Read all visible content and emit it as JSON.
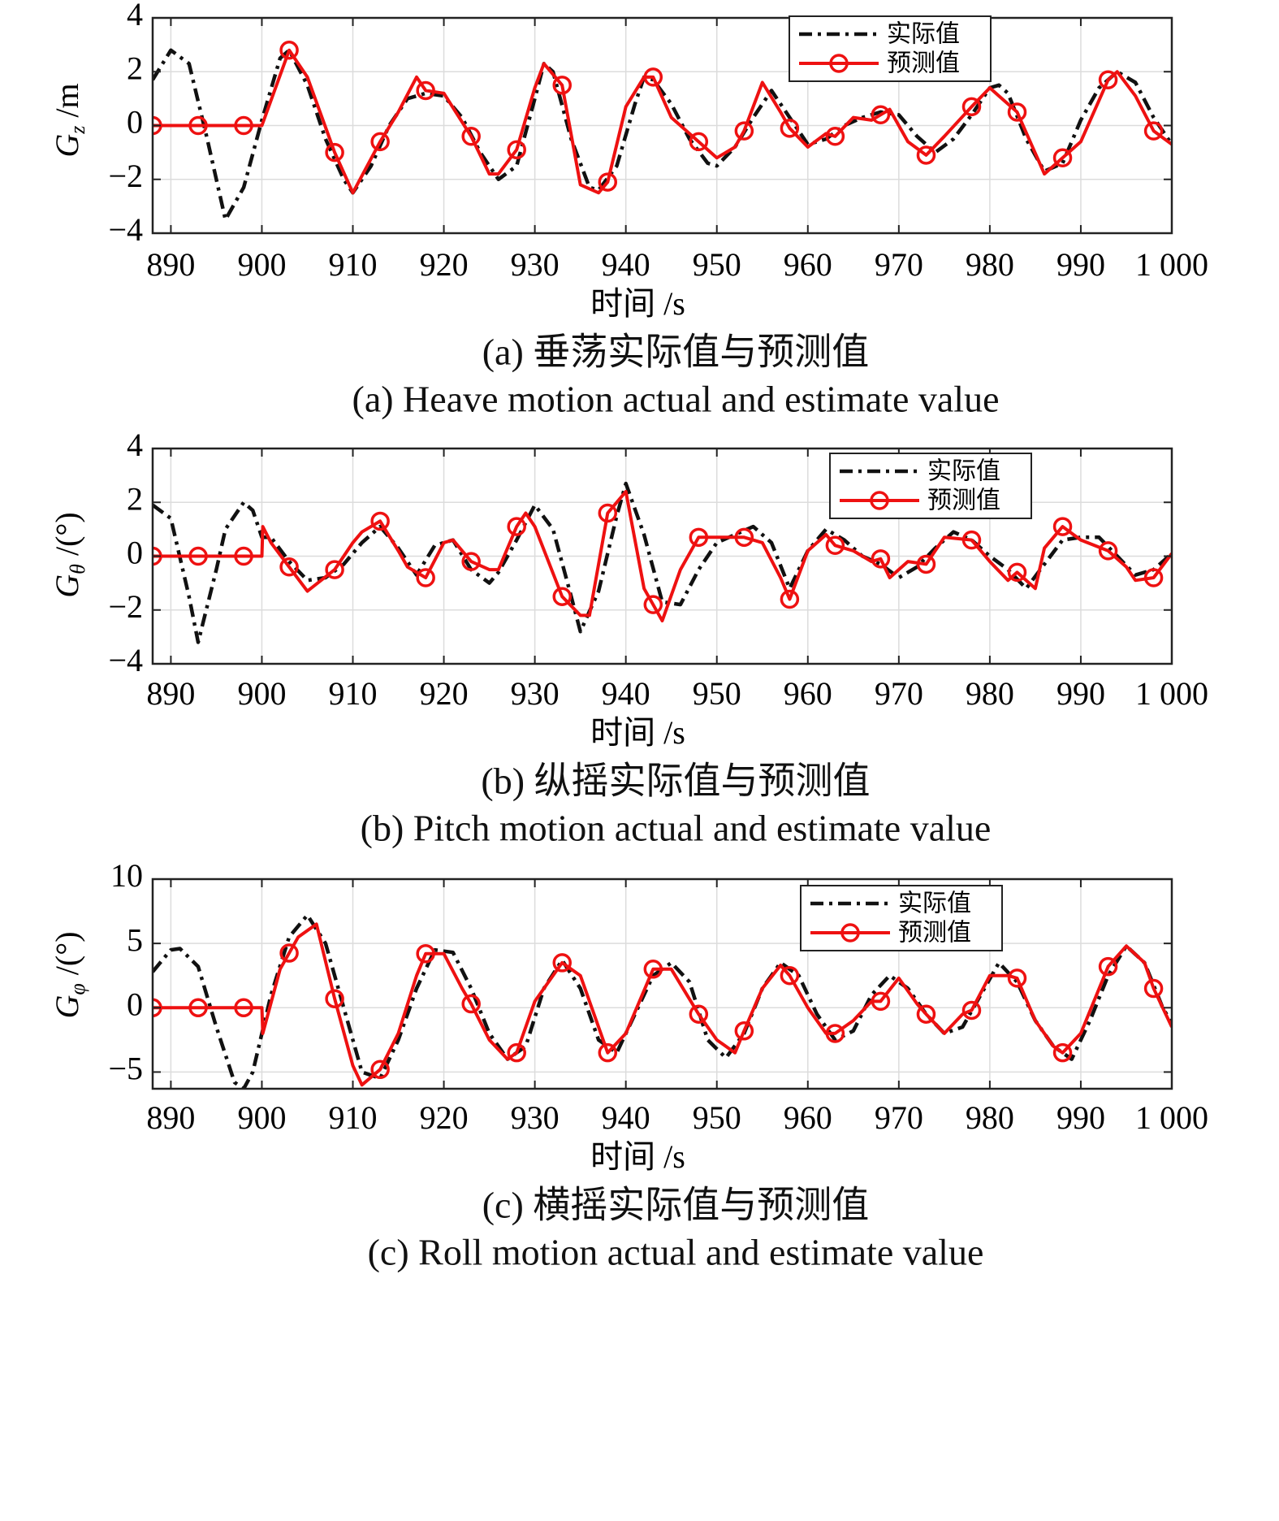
{
  "chart_data": [
    {
      "type": "line",
      "ylabel": "G_z /m",
      "xlabel": "时间 /s",
      "caption_cn": "(a) 垂荡实际值与预测值",
      "caption_en": "(a) Heave motion actual and estimate value",
      "xlim": [
        888,
        1000
      ],
      "ylim": [
        -4,
        4
      ],
      "xticks": [
        890,
        900,
        910,
        920,
        930,
        940,
        950,
        960,
        970,
        980,
        990,
        1000
      ],
      "xtick_labels": [
        "890",
        "900",
        "910",
        "920",
        "930",
        "940",
        "950",
        "960",
        "970",
        "980",
        "990",
        "1 000"
      ],
      "yticks": [
        -4,
        -2,
        0,
        2,
        4
      ],
      "ytick_labels": [
        "−4",
        "−2",
        "0",
        "2",
        "4"
      ],
      "legend": [
        "实际值",
        "预测值"
      ],
      "legend_position": "top-right",
      "grid": true,
      "series": [
        {
          "name": "实际值",
          "style": "black dash-dot",
          "x": [
            888,
            890,
            892,
            894,
            896,
            898,
            900,
            902,
            903,
            905,
            907,
            909,
            910,
            912,
            914,
            916,
            918,
            920,
            922,
            924,
            926,
            928,
            930,
            931,
            932,
            934,
            936,
            937,
            939,
            941,
            942,
            943,
            945,
            947,
            949,
            950,
            952,
            954,
            956,
            958,
            960,
            962,
            964,
            966,
            968,
            970,
            972,
            974,
            976,
            978,
            980,
            981,
            982,
            984,
            986,
            988,
            990,
            992,
            994,
            996,
            998,
            1000
          ],
          "y": [
            1.7,
            2.8,
            2.3,
            -0.5,
            -3.5,
            -2.3,
            0.2,
            2.5,
            2.8,
            1.5,
            -0.5,
            -2.0,
            -2.5,
            -1.5,
            0,
            1.0,
            1.2,
            1.1,
            0.3,
            -1.0,
            -2.0,
            -1.5,
            1.0,
            2.3,
            2.0,
            -0.5,
            -2.3,
            -2.4,
            -1.5,
            0.8,
            1.8,
            1.7,
            0.8,
            -0.5,
            -1.4,
            -1.5,
            -0.8,
            0.3,
            1.3,
            0.3,
            -0.7,
            -0.5,
            0,
            0.3,
            0.5,
            0.4,
            -0.4,
            -1.0,
            -0.5,
            0.4,
            1.4,
            1.5,
            1.2,
            -0.5,
            -1.7,
            -1.4,
            0.2,
            1.4,
            2.0,
            1.6,
            0.3,
            -0.7
          ]
        },
        {
          "name": "预测值",
          "style": "red solid with circle markers",
          "x": [
            888,
            893,
            898,
            900,
            903,
            905,
            908,
            910,
            913,
            915,
            917,
            918,
            920,
            923,
            925,
            926,
            928,
            930,
            931,
            933,
            935,
            937,
            938,
            940,
            942,
            943,
            945,
            948,
            950,
            952,
            953,
            955,
            957,
            958,
            960,
            962,
            963,
            965,
            967,
            968,
            969,
            971,
            973,
            975,
            978,
            980,
            981,
            983,
            986,
            988,
            990,
            993,
            994,
            996,
            998,
            1000
          ],
          "y": [
            0,
            0,
            0,
            0,
            2.8,
            1.8,
            -1.0,
            -2.5,
            -0.6,
            0.5,
            1.8,
            1.3,
            1.2,
            -0.4,
            -1.8,
            -1.8,
            -0.9,
            1.4,
            2.3,
            1.5,
            -2.2,
            -2.5,
            -2.1,
            0.7,
            1.8,
            1.8,
            0.3,
            -0.6,
            -1.2,
            -0.8,
            -0.2,
            1.6,
            0.5,
            -0.1,
            -0.8,
            -0.3,
            -0.4,
            0.3,
            0.2,
            0.4,
            0.6,
            -0.6,
            -1.1,
            -0.4,
            0.7,
            1.4,
            1.1,
            0.5,
            -1.8,
            -1.2,
            -0.6,
            1.7,
            2.0,
            1.1,
            -0.2,
            -0.7
          ]
        }
      ]
    },
    {
      "type": "line",
      "ylabel": "G_θ /(°)",
      "xlabel": "时间 /s",
      "caption_cn": "(b) 纵摇实际值与预测值",
      "caption_en": "(b) Pitch motion actual and estimate value",
      "xlim": [
        888,
        1000
      ],
      "ylim": [
        -4,
        4
      ],
      "xticks": [
        890,
        900,
        910,
        920,
        930,
        940,
        950,
        960,
        970,
        980,
        990,
        1000
      ],
      "xtick_labels": [
        "890",
        "900",
        "910",
        "920",
        "930",
        "940",
        "950",
        "960",
        "970",
        "980",
        "990",
        "1 000"
      ],
      "yticks": [
        -4,
        -2,
        0,
        2,
        4
      ],
      "ytick_labels": [
        "−4",
        "−2",
        "0",
        "2",
        "4"
      ],
      "legend": [
        "实际值",
        "预测值"
      ],
      "legend_position": "top-right",
      "grid": true,
      "series": [
        {
          "name": "实际值",
          "style": "black dash-dot",
          "x": [
            888,
            890,
            892,
            893,
            895,
            896,
            898,
            899,
            900,
            901,
            903,
            905,
            907,
            909,
            911,
            913,
            915,
            917,
            919,
            921,
            923,
            925,
            926,
            928,
            930,
            932,
            934,
            935,
            937,
            939,
            940,
            942,
            944,
            946,
            948,
            950,
            952,
            954,
            956,
            958,
            960,
            962,
            964,
            966,
            968,
            970,
            972,
            974,
            976,
            978,
            980,
            982,
            984,
            986,
            988,
            990,
            992,
            994,
            996,
            998,
            1000
          ],
          "y": [
            1.9,
            1.4,
            -1.5,
            -3.2,
            -0.5,
            1.0,
            2.0,
            1.7,
            0.7,
            0.7,
            -0.2,
            -0.9,
            -0.8,
            -0.3,
            0.5,
            1.1,
            0.3,
            -0.7,
            0.4,
            0.6,
            -0.5,
            -1.0,
            -0.6,
            0.6,
            1.9,
            1.0,
            -1.5,
            -2.8,
            -1.3,
            1.5,
            2.7,
            0.8,
            -1.7,
            -1.8,
            -0.5,
            0.5,
            0.8,
            1.1,
            0.5,
            -1.2,
            0.2,
            1.0,
            0.6,
            0,
            -0.3,
            -0.8,
            -0.4,
            0.3,
            0.9,
            0.6,
            0,
            -0.5,
            -1.2,
            -0.3,
            0.6,
            0.7,
            0.7,
            0,
            -0.7,
            -0.5,
            0.1
          ]
        },
        {
          "name": "预测值",
          "style": "red solid with circle markers",
          "x": [
            888,
            893,
            898,
            900,
            900.1,
            901,
            903,
            905,
            908,
            910,
            911,
            913,
            915,
            916,
            918,
            920,
            921,
            923,
            925,
            926,
            928,
            929,
            930,
            933,
            935,
            936,
            938,
            940,
            942,
            944,
            946,
            948,
            950,
            953,
            955,
            957,
            958,
            960,
            962,
            963,
            965,
            967,
            968,
            969,
            971,
            973,
            975,
            978,
            980,
            982,
            983,
            985,
            986,
            988,
            990,
            993,
            995,
            996,
            998,
            1000
          ],
          "y": [
            0,
            0,
            0,
            0,
            1.1,
            0.5,
            -0.4,
            -1.3,
            -0.5,
            0.5,
            0.9,
            1.3,
            0.2,
            -0.4,
            -0.8,
            0.5,
            0.6,
            -0.2,
            -0.5,
            -0.5,
            1.1,
            1.6,
            1.1,
            -1.5,
            -2.2,
            -2.2,
            1.6,
            2.4,
            -1.2,
            -2.4,
            -0.5,
            0.7,
            0.7,
            0.7,
            0.5,
            -0.8,
            -1.6,
            0.2,
            0.8,
            0.4,
            0.2,
            -0.2,
            -0.1,
            -0.8,
            -0.2,
            -0.3,
            0.7,
            0.6,
            -0.2,
            -0.9,
            -0.6,
            -1.2,
            0.3,
            1.1,
            0.6,
            0.2,
            -0.4,
            -0.9,
            -0.8,
            0.1
          ]
        }
      ]
    },
    {
      "type": "line",
      "ylabel": "G_φ /(°)",
      "xlabel": "时间 /s",
      "caption_cn": "(c) 横摇实际值与预测值",
      "caption_en": "(c) Roll motion actual and estimate value",
      "xlim": [
        888,
        1000
      ],
      "ylim": [
        -6.3,
        10
      ],
      "xticks": [
        890,
        900,
        910,
        920,
        930,
        940,
        950,
        960,
        970,
        980,
        990,
        1000
      ],
      "xtick_labels": [
        "890",
        "900",
        "910",
        "920",
        "930",
        "940",
        "950",
        "960",
        "970",
        "980",
        "990",
        "1 000"
      ],
      "yticks": [
        -5,
        0,
        5,
        10
      ],
      "ytick_labels": [
        "−5",
        "0",
        "5",
        "10"
      ],
      "legend": [
        "实际值",
        "预测值"
      ],
      "legend_position": "top-right",
      "grid": true,
      "series": [
        {
          "name": "实际值",
          "style": "black dash-dot",
          "x": [
            888,
            890,
            891,
            893,
            895,
            897,
            898,
            899,
            901,
            903,
            905,
            907,
            909,
            911,
            913,
            915,
            917,
            919,
            921,
            923,
            925,
            927,
            929,
            931,
            933,
            935,
            937,
            939,
            941,
            943,
            945,
            947,
            949,
            951,
            953,
            955,
            957,
            959,
            961,
            963,
            965,
            967,
            969,
            971,
            973,
            975,
            977,
            979,
            981,
            983,
            985,
            987,
            989,
            991,
            993,
            995,
            997,
            999,
            1000
          ],
          "y": [
            2.8,
            4.5,
            4.6,
            3.2,
            -1.5,
            -5.8,
            -6.3,
            -5.0,
            1.0,
            5.5,
            7.2,
            5.0,
            0,
            -5.0,
            -5.5,
            -2.5,
            1.5,
            4.5,
            4.3,
            1.5,
            -2.0,
            -4.0,
            -3.0,
            1.5,
            3.7,
            1.5,
            -2.5,
            -3.5,
            -0.5,
            2.5,
            3.5,
            2.0,
            -2.5,
            -3.9,
            -2.0,
            1.5,
            3.5,
            2.5,
            -0.5,
            -2.5,
            -1.8,
            1.0,
            2.5,
            1.5,
            -0.5,
            -2.0,
            -1.5,
            1.0,
            3.5,
            2.0,
            -1.0,
            -3.0,
            -4.0,
            -1.0,
            2.5,
            4.8,
            3.5,
            0,
            -1.2
          ]
        },
        {
          "name": "预测值",
          "style": "red solid with circle markers",
          "x": [
            888,
            893,
            898,
            900,
            900.1,
            902,
            904,
            906,
            908,
            910,
            911,
            913,
            915,
            917,
            918,
            920,
            922,
            923,
            925,
            927,
            928,
            930,
            933,
            935,
            937,
            938,
            940,
            943,
            945,
            948,
            950,
            952,
            953,
            955,
            957,
            958,
            960,
            962,
            963,
            965,
            967,
            968,
            970,
            972,
            973,
            975,
            977,
            978,
            980,
            982,
            983,
            985,
            987,
            988,
            990,
            993,
            995,
            997,
            998,
            1000
          ],
          "y": [
            0,
            0,
            0,
            0,
            -2.0,
            3.0,
            5.5,
            6.5,
            0.7,
            -4.5,
            -6.0,
            -4.8,
            -2.0,
            2.5,
            4.2,
            4.2,
            1.5,
            0.3,
            -2.5,
            -4.0,
            -3.5,
            0.5,
            3.5,
            2.5,
            -1.5,
            -3.5,
            -2.0,
            3.0,
            3.0,
            -0.5,
            -2.5,
            -3.5,
            -1.8,
            1.5,
            3.3,
            2.5,
            0,
            -2.0,
            -2.0,
            -1.0,
            0.5,
            0.5,
            2.3,
            0.3,
            -0.5,
            -2.0,
            -0.5,
            -0.2,
            2.5,
            2.5,
            2.3,
            -1.0,
            -3.0,
            -3.5,
            -2.0,
            3.2,
            4.8,
            3.5,
            1.5,
            -1.5
          ]
        }
      ]
    }
  ]
}
